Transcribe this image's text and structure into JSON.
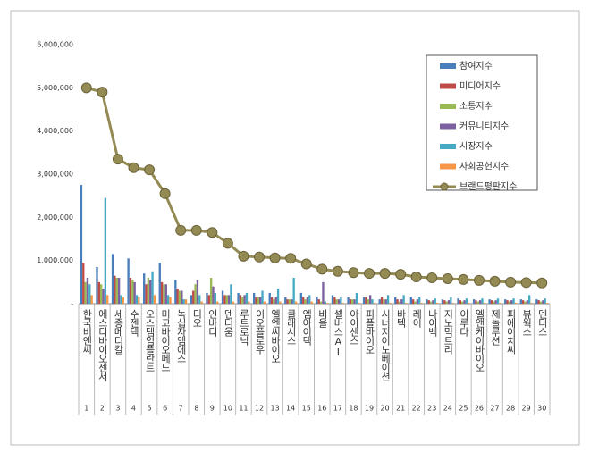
{
  "chart_data": {
    "type": "bar",
    "categories": [
      "한국비엔씨",
      "에스디바이오센서",
      "세종메디칼",
      "수젠텍",
      "오스템임플란트",
      "미코바이오메드",
      "녹십자엠에스",
      "디오",
      "인바디",
      "덴티움",
      "루트로닉",
      "이오플로우",
      "엘엔씨바이오",
      "클래시스",
      "엠아이텍",
      "비올",
      "셀바스AI",
      "아이센스",
      "피플바이오",
      "시너지이노베이션",
      "바텍",
      "레이",
      "나이벡",
      "지노믹트리",
      "이루다",
      "엘앤케이바이오",
      "제놀루션",
      "피에이치씨",
      "뷰웍스",
      "덴티스"
    ],
    "ranks": [
      1,
      2,
      3,
      4,
      5,
      6,
      7,
      8,
      9,
      10,
      11,
      12,
      13,
      14,
      15,
      16,
      17,
      18,
      19,
      20,
      21,
      22,
      23,
      24,
      25,
      26,
      27,
      28,
      29,
      30
    ],
    "ylim": [
      0,
      6000000
    ],
    "yticks": [
      {
        "value": 0,
        "label": "-"
      },
      {
        "value": 1000000,
        "label": "1,000,000"
      },
      {
        "value": 2000000,
        "label": "2,000,000"
      },
      {
        "value": 3000000,
        "label": "3,000,000"
      },
      {
        "value": 4000000,
        "label": "4,000,000"
      },
      {
        "value": 5000000,
        "label": "5,000,000"
      },
      {
        "value": 6000000,
        "label": "6,000,000"
      }
    ],
    "grid": false,
    "legend": "upper-right",
    "series": [
      {
        "name": "참여지수",
        "color": "#4a7ebb",
        "type": "bar",
        "values": [
          2750000,
          850000,
          1150000,
          1050000,
          700000,
          950000,
          550000,
          200000,
          250000,
          300000,
          250000,
          250000,
          250000,
          150000,
          250000,
          150000,
          200000,
          150000,
          150000,
          100000,
          150000,
          150000,
          100000,
          100000,
          120000,
          100000,
          100000,
          100000,
          100000,
          100000
        ]
      },
      {
        "name": "미디어지수",
        "color": "#be4b48",
        "type": "bar",
        "values": [
          950000,
          500000,
          650000,
          600000,
          450000,
          500000,
          350000,
          300000,
          200000,
          200000,
          200000,
          150000,
          150000,
          100000,
          150000,
          100000,
          150000,
          100000,
          150000,
          150000,
          100000,
          100000,
          80000,
          80000,
          80000,
          80000,
          80000,
          80000,
          80000,
          80000
        ]
      },
      {
        "name": "소통지수",
        "color": "#98b954",
        "type": "bar",
        "values": [
          500000,
          450000,
          600000,
          550000,
          600000,
          450000,
          300000,
          450000,
          600000,
          200000,
          150000,
          150000,
          100000,
          100000,
          100000,
          50000,
          100000,
          100000,
          100000,
          100000,
          50000,
          50000,
          50000,
          50000,
          50000,
          50000,
          50000,
          50000,
          50000,
          50000
        ]
      },
      {
        "name": "커뮤니티지수",
        "color": "#7d60a0",
        "type": "bar",
        "values": [
          600000,
          350000,
          600000,
          500000,
          550000,
          450000,
          300000,
          550000,
          400000,
          200000,
          200000,
          150000,
          150000,
          100000,
          150000,
          500000,
          100000,
          100000,
          200000,
          100000,
          100000,
          100000,
          80000,
          80000,
          80000,
          80000,
          80000,
          80000,
          80000,
          80000
        ]
      },
      {
        "name": "시장지수",
        "color": "#46aac5",
        "type": "bar",
        "values": [
          450000,
          2450000,
          200000,
          200000,
          750000,
          200000,
          100000,
          200000,
          250000,
          450000,
          250000,
          300000,
          350000,
          600000,
          200000,
          50000,
          150000,
          250000,
          100000,
          200000,
          200000,
          150000,
          120000,
          150000,
          120000,
          120000,
          120000,
          120000,
          200000,
          120000
        ]
      },
      {
        "name": "사회공헌지수",
        "color": "#f79646",
        "type": "bar",
        "values": [
          200000,
          200000,
          150000,
          150000,
          200000,
          150000,
          100000,
          50000,
          50000,
          50000,
          50000,
          50000,
          50000,
          50000,
          50000,
          20000,
          20000,
          20000,
          20000,
          20000,
          20000,
          20000,
          20000,
          20000,
          20000,
          20000,
          20000,
          20000,
          20000,
          20000
        ]
      },
      {
        "name": "브랜드평판지수",
        "color": "#948a54",
        "type": "line",
        "values": [
          5000000,
          4900000,
          3350000,
          3150000,
          3100000,
          2550000,
          1700000,
          1700000,
          1650000,
          1400000,
          1100000,
          1080000,
          1060000,
          1050000,
          920000,
          800000,
          750000,
          720000,
          700000,
          700000,
          680000,
          620000,
          600000,
          580000,
          560000,
          540000,
          520000,
          500000,
          490000,
          480000
        ]
      }
    ]
  }
}
